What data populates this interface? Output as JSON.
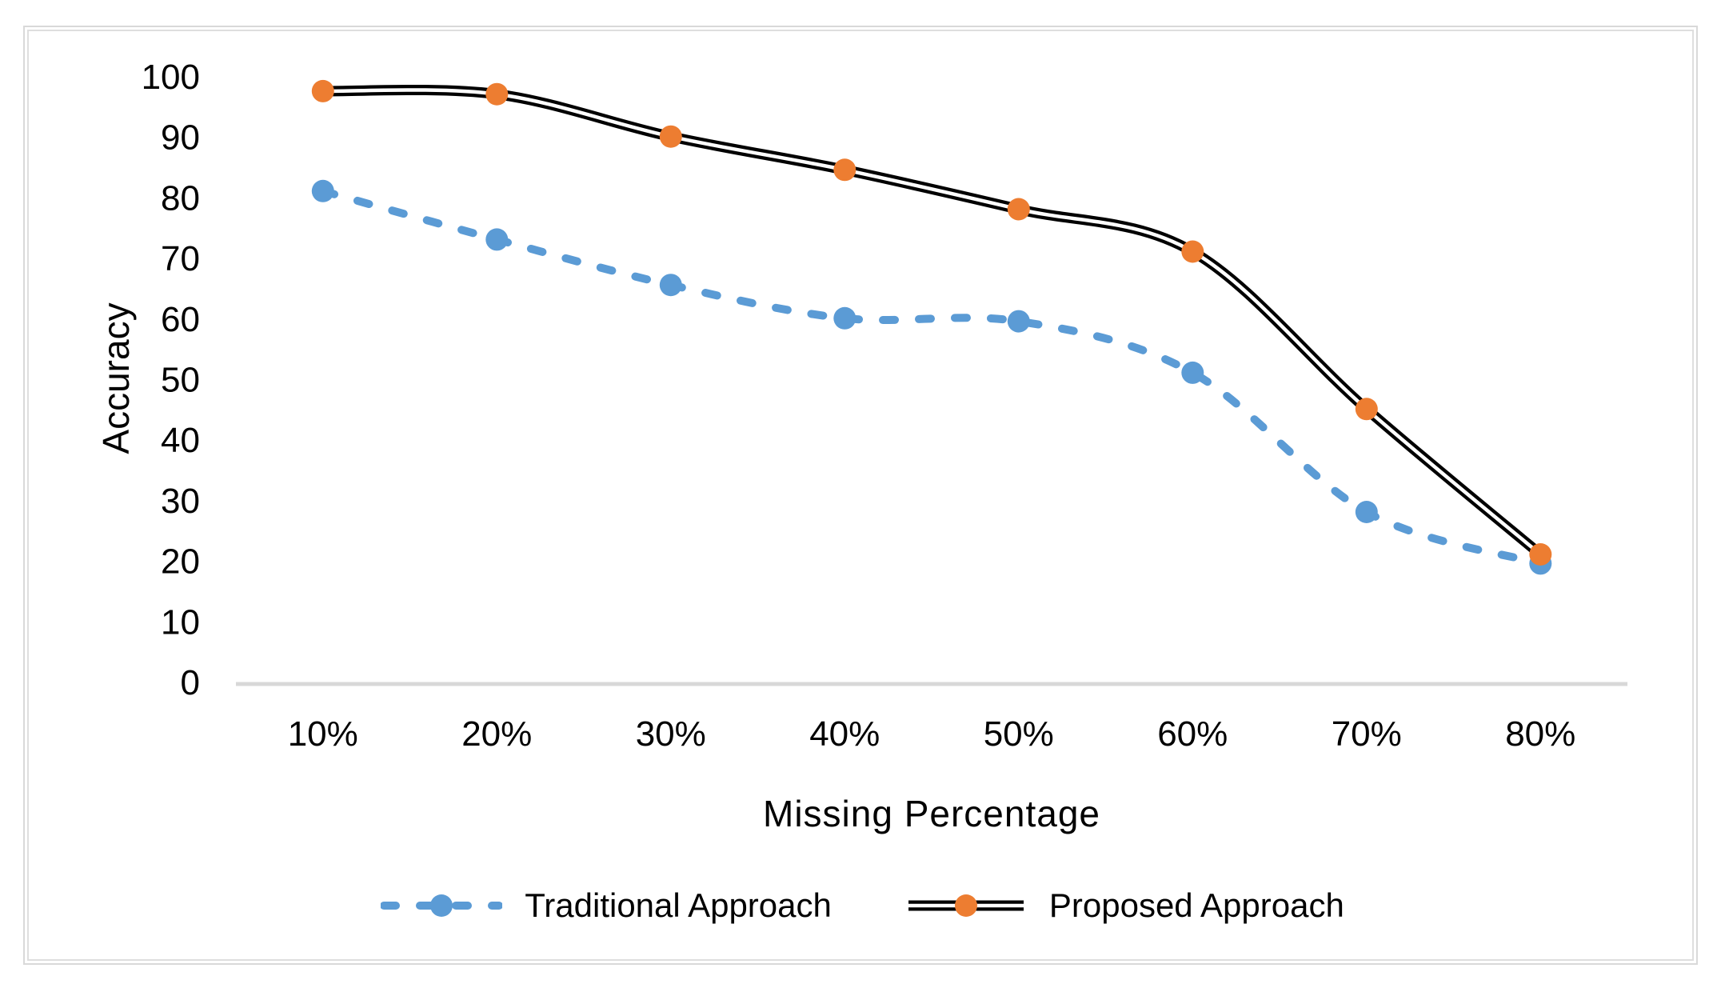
{
  "chart_data": {
    "type": "line",
    "title": "",
    "xlabel": "Missing Percentage",
    "ylabel": "Accuracy",
    "categories": [
      "10%",
      "20%",
      "30%",
      "40%",
      "50%",
      "60%",
      "70%",
      "80%"
    ],
    "y_ticks": [
      0,
      10,
      20,
      30,
      40,
      50,
      60,
      70,
      80,
      90,
      100
    ],
    "ylim": [
      0,
      100
    ],
    "grid": false,
    "legend_position": "bottom",
    "series": [
      {
        "name": "Traditional Approach",
        "values": [
          81,
          73,
          65.5,
          60,
          59.5,
          51,
          28,
          19.5
        ],
        "color": "#5B9BD5",
        "line_style": "dashed",
        "marker": "circle"
      },
      {
        "name": "Proposed Approach",
        "values": [
          97.5,
          97,
          90,
          84.5,
          78,
          71,
          45,
          21
        ],
        "color": "#ED7D31",
        "line_color": "#000000",
        "line_style": "double-solid",
        "marker": "circle"
      }
    ]
  },
  "colors": {
    "axis_line": "#d8d8d8",
    "frame_border": "#d9d9d9",
    "text": "#000000",
    "background": "#ffffff"
  }
}
